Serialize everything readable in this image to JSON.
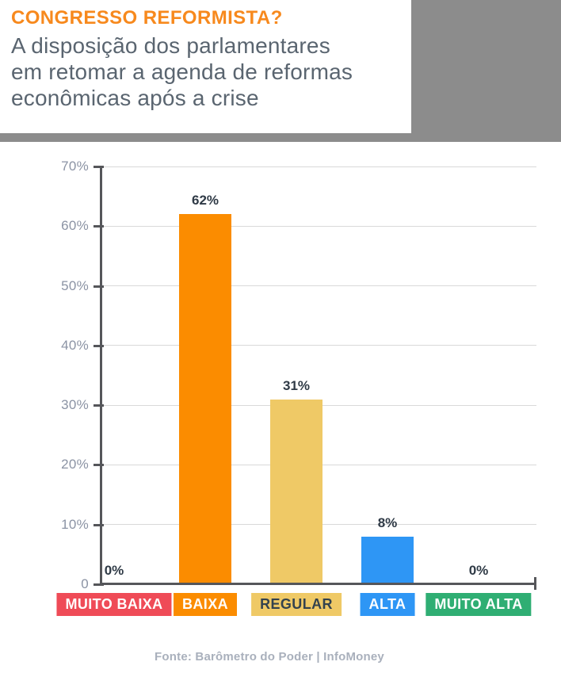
{
  "header": {
    "title": "CONGRESSO REFORMISTA?",
    "subtitle_lines": [
      "A disposição dos parlamentares",
      "em retomar a agenda de reformas",
      "econômicas após a crise"
    ]
  },
  "chart_data": {
    "type": "bar",
    "title": "CONGRESSO REFORMISTA?",
    "subtitle": "A disposição dos parlamentares em retomar a agenda de reformas econômicas após a crise",
    "categories": [
      "MUITO BAIXA",
      "BAIXA",
      "REGULAR",
      "ALTA",
      "MUITO ALTA"
    ],
    "values": [
      0,
      62,
      31,
      8,
      0
    ],
    "value_labels": [
      "0%",
      "62%",
      "31%",
      "8%",
      "0%"
    ],
    "bar_colors": [
      "#EF4B57",
      "#FB8C00",
      "#EFC966",
      "#2E96F5",
      "#2FAE73"
    ],
    "category_label_bg": [
      "#EF4B57",
      "#FB8C00",
      "#EFC966",
      "#2E96F5",
      "#2FAE73"
    ],
    "category_label_text": [
      "#FFFFFF",
      "#FFFFFF",
      "#33424E",
      "#FFFFFF",
      "#FFFFFF"
    ],
    "ylabel": "",
    "xlabel": "",
    "ylim": [
      0,
      70
    ],
    "y_ticks": [
      0,
      10,
      20,
      30,
      40,
      50,
      60,
      70
    ],
    "y_tick_labels": [
      "0",
      "10%",
      "20%",
      "30%",
      "40%",
      "50%",
      "60%",
      "70%"
    ],
    "grid": true,
    "legend": false
  },
  "footer": {
    "source": "Fonte: Barômetro do Poder | InfoMoney"
  },
  "colors": {
    "title_accent": "#F7891D",
    "subtitle_text": "#5A6570",
    "header_gray": "#8C8C8C",
    "axis": "#55565A",
    "gridline": "#D9D9D9",
    "y_tick_label": "#8B93A4",
    "value_label": "#2F3A46",
    "footer_text": "#A9B0BC"
  }
}
